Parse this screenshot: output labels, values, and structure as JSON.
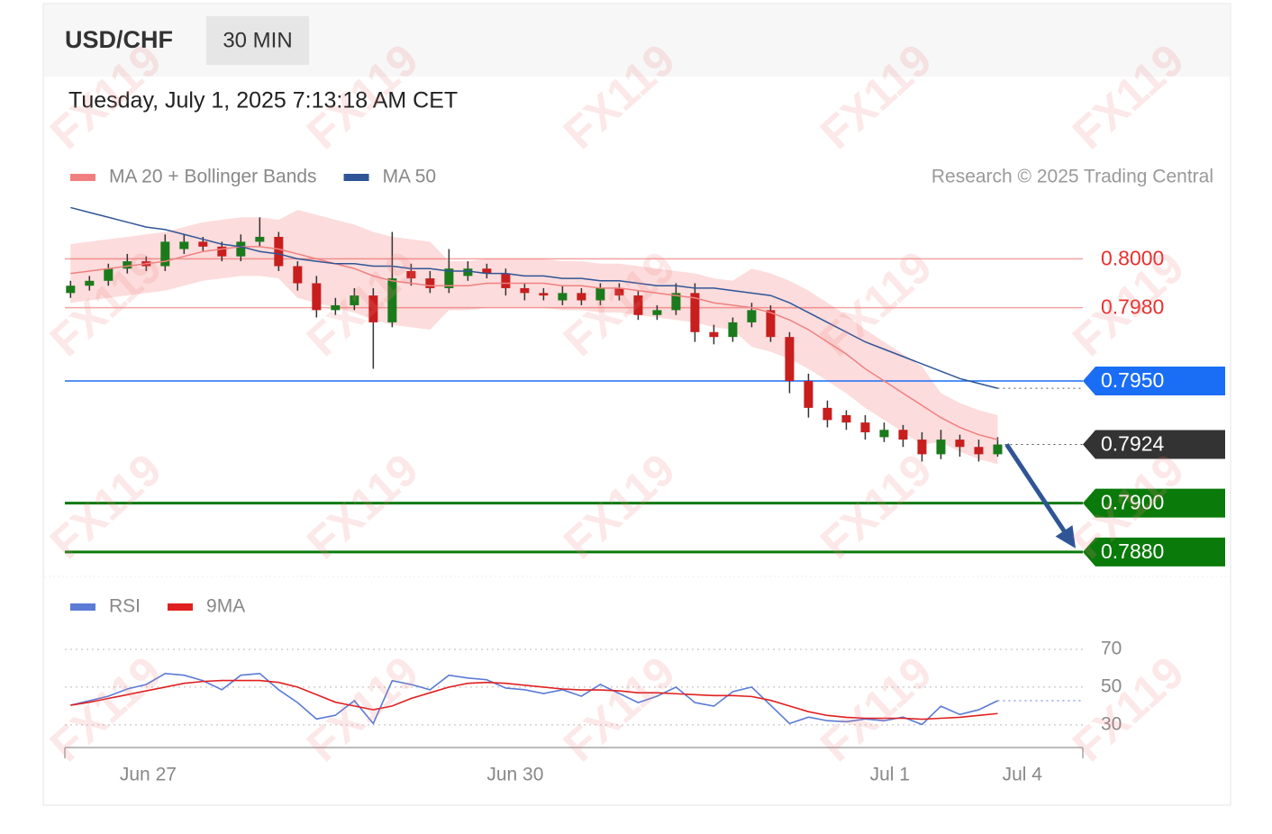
{
  "watermark": "FX119",
  "chart_data": [
    {
      "type": "candlestick",
      "title": "USD/CHF",
      "timeframe": "30 MIN",
      "subtitle": "Tuesday, July 1, 2025 7:13:18 AM CET",
      "credit": "Research © 2025 Trading Central",
      "up_color": "#1b7a1b",
      "down_color": "#c81e1e",
      "open": [
        0.7986,
        0.7989,
        0.7991,
        0.7996,
        0.7999,
        0.7997,
        0.8004,
        0.8007,
        0.8005,
        0.8001,
        0.8007,
        0.8009,
        0.7997,
        0.799,
        0.7979,
        0.7981,
        0.7985,
        0.7974,
        0.7995,
        0.7992,
        0.7988,
        0.7993,
        0.7996,
        0.7994,
        0.7988,
        0.7986,
        0.7983,
        0.7986,
        0.7983,
        0.7988,
        0.7985,
        0.7977,
        0.7979,
        0.7986,
        0.797,
        0.7968,
        0.7974,
        0.7979,
        0.7968,
        0.795,
        0.7939,
        0.7936,
        0.7933,
        0.7927,
        0.793,
        0.7926,
        0.792,
        0.7926,
        0.7923,
        0.792
      ],
      "high": [
        0.7991,
        0.7993,
        0.7998,
        0.8002,
        0.8001,
        0.801,
        0.801,
        0.8009,
        0.8007,
        0.801,
        0.8017,
        0.8011,
        0.7999,
        0.7993,
        0.7984,
        0.7988,
        0.7988,
        0.8011,
        0.7998,
        0.7995,
        0.8004,
        0.7999,
        0.7998,
        0.7996,
        0.799,
        0.7988,
        0.7989,
        0.7988,
        0.799,
        0.799,
        0.7987,
        0.7981,
        0.799,
        0.799,
        0.7973,
        0.7976,
        0.7982,
        0.7981,
        0.797,
        0.7953,
        0.7942,
        0.7938,
        0.7936,
        0.7933,
        0.7932,
        0.7929,
        0.793,
        0.7928,
        0.7926,
        0.7927
      ],
      "low": [
        0.7984,
        0.7987,
        0.7989,
        0.7994,
        0.7995,
        0.7995,
        0.8002,
        0.8003,
        0.7999,
        0.7999,
        0.8005,
        0.7995,
        0.7987,
        0.7976,
        0.7977,
        0.7979,
        0.7955,
        0.7972,
        0.7989,
        0.7986,
        0.7986,
        0.7991,
        0.7992,
        0.7985,
        0.7983,
        0.7983,
        0.7981,
        0.7981,
        0.7981,
        0.7983,
        0.7975,
        0.7975,
        0.7977,
        0.7966,
        0.7965,
        0.7966,
        0.7972,
        0.7966,
        0.7945,
        0.7935,
        0.7931,
        0.793,
        0.7926,
        0.7925,
        0.7923,
        0.7917,
        0.7918,
        0.7919,
        0.7917,
        0.7919
      ],
      "close": [
        0.7989,
        0.7991,
        0.7996,
        0.7999,
        0.7997,
        0.8007,
        0.8007,
        0.8005,
        0.8001,
        0.8007,
        0.8009,
        0.7997,
        0.799,
        0.7979,
        0.7981,
        0.7985,
        0.7974,
        0.7992,
        0.7992,
        0.7988,
        0.7996,
        0.7996,
        0.7994,
        0.7988,
        0.7986,
        0.7985,
        0.7986,
        0.7983,
        0.7988,
        0.7985,
        0.7977,
        0.7979,
        0.7986,
        0.797,
        0.7968,
        0.7974,
        0.7979,
        0.7968,
        0.795,
        0.7939,
        0.7934,
        0.7933,
        0.7929,
        0.793,
        0.7926,
        0.792,
        0.7926,
        0.7923,
        0.792,
        0.7924
      ],
      "series": [
        {
          "name": "MA 20 + Bollinger Bands",
          "color": "#f08080",
          "band_color": "#fbd3d3",
          "values": [
            0.7994,
            0.7995,
            0.7996,
            0.7997,
            0.7998,
            0.7999,
            0.8001,
            0.8003,
            0.8004,
            0.8005,
            0.8005,
            0.8004,
            0.8002,
            0.8,
            0.7998,
            0.7996,
            0.7993,
            0.7991,
            0.799,
            0.7989,
            0.7989,
            0.7989,
            0.799,
            0.799,
            0.799,
            0.799,
            0.7989,
            0.7989,
            0.7988,
            0.7988,
            0.7987,
            0.7986,
            0.7985,
            0.7984,
            0.7982,
            0.7981,
            0.798,
            0.7978,
            0.7975,
            0.7971,
            0.7966,
            0.7961,
            0.7955,
            0.795,
            0.7945,
            0.794,
            0.7935,
            0.7931,
            0.7928,
            0.7926
          ],
          "upper": [
            0.8006,
            0.8007,
            0.8008,
            0.8009,
            0.801,
            0.8011,
            0.8013,
            0.8015,
            0.8016,
            0.8017,
            0.8017,
            0.8016,
            0.802,
            0.8018,
            0.8016,
            0.8014,
            0.8011,
            0.8009,
            0.8008,
            0.8007,
            0.7999,
            0.7999,
            0.8,
            0.8,
            0.8,
            0.8,
            0.7999,
            0.7999,
            0.7998,
            0.7998,
            0.7997,
            0.7996,
            0.7995,
            0.7994,
            0.7992,
            0.7991,
            0.7996,
            0.7994,
            0.7991,
            0.7987,
            0.7982,
            0.7977,
            0.7971,
            0.7966,
            0.7961,
            0.7956,
            0.7945,
            0.7941,
            0.7938,
            0.7936
          ],
          "lower": [
            0.7982,
            0.7983,
            0.7984,
            0.7985,
            0.7986,
            0.7987,
            0.7989,
            0.7991,
            0.7992,
            0.7993,
            0.7993,
            0.7992,
            0.7984,
            0.7982,
            0.798,
            0.7978,
            0.7975,
            0.7973,
            0.7972,
            0.7971,
            0.7979,
            0.7979,
            0.798,
            0.798,
            0.798,
            0.798,
            0.7979,
            0.7979,
            0.7978,
            0.7978,
            0.7977,
            0.7976,
            0.7975,
            0.7974,
            0.7972,
            0.7971,
            0.7964,
            0.7962,
            0.7959,
            0.7955,
            0.795,
            0.7945,
            0.7939,
            0.7934,
            0.7929,
            0.7924,
            0.7925,
            0.7921,
            0.7918,
            0.7916
          ]
        },
        {
          "name": "MA 50",
          "color": "#2f5597",
          "values": [
            0.8021,
            0.8019,
            0.8017,
            0.8015,
            0.8013,
            0.8012,
            0.801,
            0.8008,
            0.8006,
            0.8005,
            0.8003,
            0.8002,
            0.8,
            0.7999,
            0.7998,
            0.7998,
            0.7997,
            0.7997,
            0.7996,
            0.7996,
            0.7995,
            0.7995,
            0.7994,
            0.7994,
            0.7993,
            0.7993,
            0.7992,
            0.7992,
            0.7991,
            0.7991,
            0.799,
            0.7989,
            0.7989,
            0.7988,
            0.7988,
            0.7987,
            0.7986,
            0.7985,
            0.7982,
            0.7978,
            0.7974,
            0.797,
            0.7966,
            0.7963,
            0.796,
            0.7957,
            0.7954,
            0.7951,
            0.7949,
            0.7947
          ]
        }
      ],
      "levels": [
        {
          "value": 0.8,
          "label": "0.8000",
          "color": "#e8302e",
          "line": "solid",
          "tag": false
        },
        {
          "value": 0.798,
          "label": "0.7980",
          "color": "#e8302e",
          "line": "solid",
          "tag": false
        },
        {
          "value": 0.795,
          "label": "0.7950",
          "color": "#1a6ef5",
          "line": "solid",
          "tag": true
        },
        {
          "value": 0.7924,
          "label": "0.7924",
          "color": "#333333",
          "line": "dotted",
          "tag": true
        },
        {
          "value": 0.79,
          "label": "0.7900",
          "color": "#0a7a0a",
          "line": "solid",
          "tag": true
        },
        {
          "value": 0.788,
          "label": "0.7880",
          "color": "#0a7a0a",
          "line": "solid",
          "tag": true
        }
      ],
      "arrow_color": "#2f5597",
      "xlim": [
        -0.3,
        53.5
      ],
      "ylim": [
        0.787,
        0.8023
      ]
    },
    {
      "type": "line",
      "series": [
        {
          "name": "RSI",
          "color": "#5b7bd5",
          "values": [
            40.4,
            42.8,
            45.2,
            49.0,
            51.4,
            57.2,
            56.3,
            53.4,
            48.6,
            56.3,
            57.2,
            48.6,
            41.8,
            33.1,
            35.1,
            42.8,
            30.7,
            53.4,
            51.4,
            48.6,
            56.3,
            54.8,
            53.9,
            49.5,
            48.6,
            46.6,
            48.6,
            45.2,
            51.4,
            46.6,
            41.8,
            45.2,
            50.0,
            41.8,
            39.9,
            47.6,
            50.0,
            40.4,
            30.7,
            34.1,
            32.2,
            31.7,
            33.1,
            32.2,
            34.1,
            30.2,
            39.9,
            35.5,
            38.0,
            42.8
          ]
        },
        {
          "name": "9MA",
          "color": "#e02020",
          "values": [
            40.4,
            42,
            44,
            46,
            48,
            50,
            52,
            53,
            53.5,
            53.5,
            53.5,
            52.5,
            50,
            46,
            42,
            40,
            38,
            40,
            44,
            47,
            50,
            52,
            52.5,
            52,
            51,
            50,
            49,
            48.5,
            48.5,
            48,
            47,
            47,
            46.5,
            46,
            45.5,
            45.5,
            45,
            43,
            40,
            37,
            35,
            34,
            33.5,
            33.5,
            33.5,
            33,
            33.5,
            34,
            35,
            36
          ]
        }
      ],
      "xlim": [
        -0.3,
        53.5
      ],
      "xticks": [
        {
          "value": 4.1,
          "label": "Jun 27"
        },
        {
          "value": 23.5,
          "label": "Jun 30"
        },
        {
          "value": 43.3,
          "label": "Jul 1"
        },
        {
          "value": 50.3,
          "label": "Jul 4"
        }
      ],
      "ylim": [
        18,
        80
      ],
      "yticks": [
        70,
        50,
        30
      ]
    }
  ]
}
